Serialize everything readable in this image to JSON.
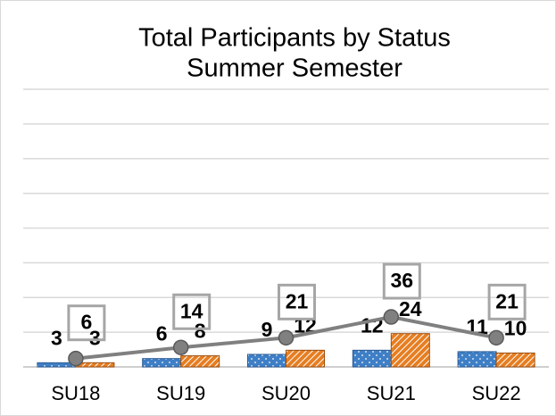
{
  "chart_data": {
    "type": "bar",
    "title": [
      "Total Participants by Status",
      "Summer Semester"
    ],
    "categories": [
      "SU18",
      "SU19",
      "SU20",
      "SU21",
      "SU22"
    ],
    "series": [
      {
        "color": "#3f7fc6",
        "values": [
          3,
          6,
          9,
          12,
          11
        ]
      },
      {
        "color": "#e67e22",
        "values": [
          3,
          8,
          12,
          24,
          10
        ]
      },
      {
        "type": "line",
        "color": "#808080",
        "values": [
          6,
          14,
          21,
          36,
          21
        ]
      }
    ],
    "ylim": [
      0,
      200
    ],
    "yticks": [
      0,
      25,
      50,
      75,
      100,
      125,
      150,
      175,
      200
    ],
    "grid": true
  }
}
